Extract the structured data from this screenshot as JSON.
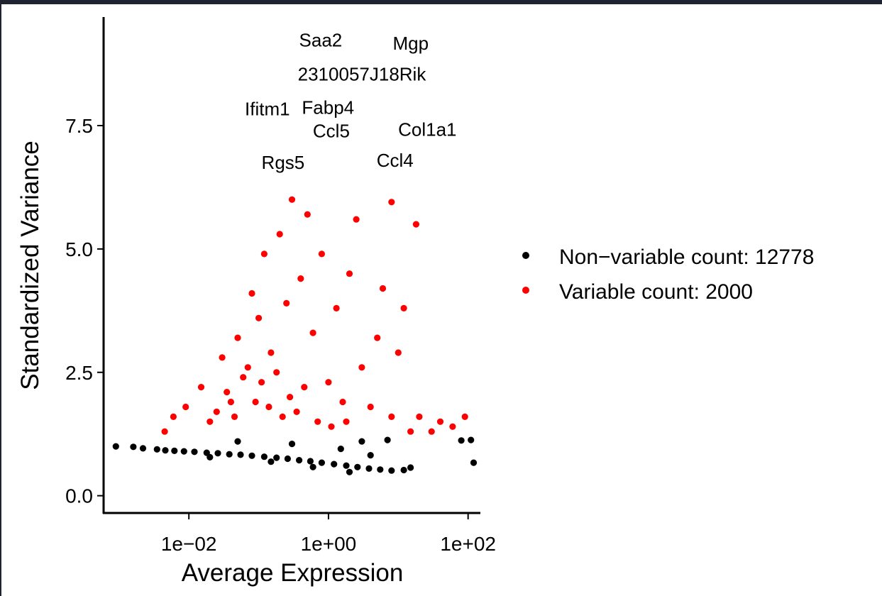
{
  "chart_data": {
    "type": "scatter",
    "title": "",
    "xlabel": "Average Expression",
    "ylabel": "Standardized Variance",
    "x_scale": "log10",
    "xlim": [
      0.0006,
      150
    ],
    "ylim": [
      -0.35,
      9.7
    ],
    "x_ticks": [
      0.01,
      1,
      100
    ],
    "x_tick_labels": [
      "1e−02",
      "1e+00",
      "1e+02"
    ],
    "y_ticks": [
      0.0,
      2.5,
      5.0,
      7.5
    ],
    "y_tick_labels": [
      "0.0",
      "2.5",
      "5.0",
      "7.5"
    ],
    "grid": false,
    "legend_position": "right",
    "series": [
      {
        "name": "Non−variable count: 12778",
        "color": "#000000",
        "points": [
          [
            0.0009,
            1.0
          ],
          [
            0.0016,
            0.99
          ],
          [
            0.0022,
            0.96
          ],
          [
            0.0035,
            0.94
          ],
          [
            0.0046,
            0.92
          ],
          [
            0.0062,
            0.91
          ],
          [
            0.0085,
            0.9
          ],
          [
            0.012,
            0.89
          ],
          [
            0.018,
            0.87
          ],
          [
            0.026,
            0.86
          ],
          [
            0.038,
            0.84
          ],
          [
            0.055,
            0.83
          ],
          [
            0.08,
            0.81
          ],
          [
            0.12,
            0.79
          ],
          [
            0.18,
            0.77
          ],
          [
            0.26,
            0.75
          ],
          [
            0.38,
            0.72
          ],
          [
            0.55,
            0.7
          ],
          [
            0.8,
            0.67
          ],
          [
            1.2,
            0.64
          ],
          [
            1.8,
            0.61
          ],
          [
            2.6,
            0.58
          ],
          [
            3.8,
            0.55
          ],
          [
            5.5,
            0.53
          ],
          [
            8.0,
            0.51
          ],
          [
            12,
            0.52
          ],
          [
            15,
            0.57
          ],
          [
            0.05,
            1.1
          ],
          [
            0.3,
            1.05
          ],
          [
            1.5,
            0.95
          ],
          [
            3.0,
            1.1
          ],
          [
            4.0,
            0.82
          ],
          [
            7.0,
            1.13
          ],
          [
            110,
            1.13
          ],
          [
            80,
            1.12
          ],
          [
            120,
            0.67
          ],
          [
            2.0,
            0.48
          ],
          [
            0.6,
            0.58
          ],
          [
            0.15,
            0.69
          ],
          [
            0.02,
            0.78
          ]
        ]
      },
      {
        "name": "Variable count: 2000",
        "color": "#ff0000",
        "points": [
          [
            0.0045,
            1.3
          ],
          [
            0.006,
            1.6
          ],
          [
            0.009,
            1.8
          ],
          [
            0.015,
            2.2
          ],
          [
            0.02,
            1.5
          ],
          [
            0.03,
            2.8
          ],
          [
            0.04,
            1.9
          ],
          [
            0.05,
            3.2
          ],
          [
            0.06,
            2.4
          ],
          [
            0.08,
            4.1
          ],
          [
            0.1,
            3.6
          ],
          [
            0.12,
            4.9
          ],
          [
            0.15,
            2.9
          ],
          [
            0.2,
            5.3
          ],
          [
            0.25,
            3.9
          ],
          [
            0.3,
            6.0
          ],
          [
            0.4,
            4.4
          ],
          [
            0.5,
            5.7
          ],
          [
            0.6,
            3.3
          ],
          [
            0.8,
            4.9
          ],
          [
            1.0,
            2.3
          ],
          [
            1.3,
            3.8
          ],
          [
            1.6,
            1.9
          ],
          [
            2.0,
            4.5
          ],
          [
            2.5,
            5.6
          ],
          [
            3.0,
            2.6
          ],
          [
            4.0,
            1.8
          ],
          [
            5.0,
            3.2
          ],
          [
            6.0,
            4.2
          ],
          [
            8.0,
            1.6
          ],
          [
            10,
            2.9
          ],
          [
            12,
            3.8
          ],
          [
            15,
            1.3
          ],
          [
            20,
            1.6
          ],
          [
            30,
            1.3
          ],
          [
            40,
            1.5
          ],
          [
            60,
            1.4
          ],
          [
            90,
            1.6
          ],
          [
            18,
            5.5
          ],
          [
            8.0,
            5.95
          ],
          [
            0.025,
            1.7
          ],
          [
            0.035,
            2.1
          ],
          [
            0.045,
            1.6
          ],
          [
            0.07,
            2.6
          ],
          [
            0.09,
            1.9
          ],
          [
            0.11,
            2.3
          ],
          [
            0.14,
            1.8
          ],
          [
            0.18,
            2.5
          ],
          [
            0.22,
            1.6
          ],
          [
            0.28,
            2.0
          ],
          [
            0.35,
            1.7
          ],
          [
            0.45,
            2.2
          ],
          [
            0.7,
            1.5
          ],
          [
            1.1,
            1.4
          ],
          [
            1.8,
            1.5
          ]
        ]
      }
    ],
    "annotations": [
      {
        "text": "Saa2",
        "x": 0.72,
        "y": 8.93
      },
      {
        "text": "Mgp",
        "x": 6.0,
        "y": 9.17
      },
      {
        "text": "2310057J18Rik",
        "x": 3.8,
        "y": 8.17
      },
      {
        "text": "Ifitm1",
        "x": 0.38,
        "y": 7.51
      },
      {
        "text": "Fabp4",
        "x": 1.5,
        "y": 7.97
      },
      {
        "text": "Ccl5",
        "x": 1.0,
        "y": 7.38
      },
      {
        "text": "Col1a1",
        "x": 7.0,
        "y": 7.42
      },
      {
        "text": "Rgs5",
        "x": 0.15,
        "y": 6.55
      },
      {
        "text": "Ccl4",
        "x": 3.6,
        "y": 6.84
      }
    ]
  }
}
